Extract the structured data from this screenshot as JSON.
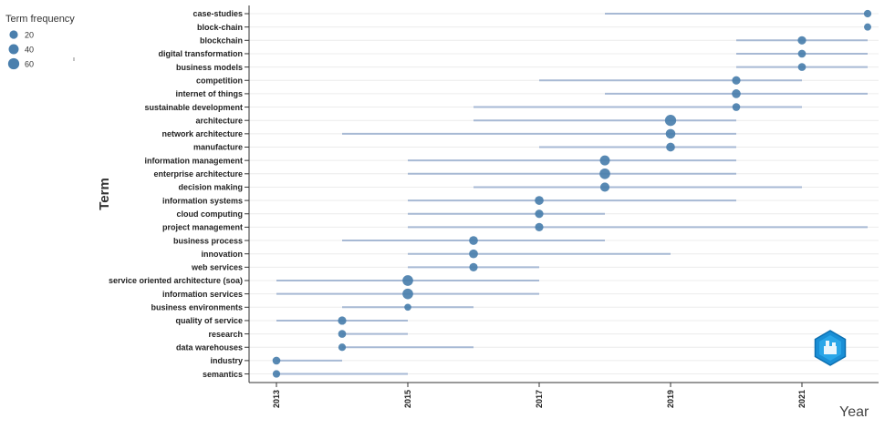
{
  "chart_data": {
    "type": "scatter",
    "xlabel": "Year",
    "ylabel": "Term",
    "xlim": [
      2012.6,
      2022.3
    ],
    "x_ticks": [
      "2013",
      "2015",
      "2017",
      "2019",
      "2021"
    ],
    "legend": {
      "title": "Term frequency",
      "items": [
        {
          "label": "20",
          "value": 20
        },
        {
          "label": "40",
          "value": 40
        },
        {
          "label": "60",
          "value": 60
        }
      ],
      "placement": "top-left"
    },
    "colors": {
      "point": "#4a7fad",
      "range": "#a7b9d4",
      "grid": "#ececec"
    },
    "terms": [
      {
        "term": "case-studies",
        "start": 2018,
        "end": 2022,
        "median": 2022,
        "freq": 12
      },
      {
        "term": "block-chain",
        "start": 2022,
        "end": 2022,
        "median": 2022,
        "freq": 10
      },
      {
        "term": "blockchain",
        "start": 2020,
        "end": 2022,
        "median": 2021,
        "freq": 20
      },
      {
        "term": "digital transformation",
        "start": 2020,
        "end": 2022,
        "median": 2021,
        "freq": 15
      },
      {
        "term": "business models",
        "start": 2020,
        "end": 2022,
        "median": 2021,
        "freq": 15
      },
      {
        "term": "competition",
        "start": 2017,
        "end": 2021,
        "median": 2020,
        "freq": 20
      },
      {
        "term": "internet of things",
        "start": 2018,
        "end": 2022,
        "median": 2020,
        "freq": 25
      },
      {
        "term": "sustainable development",
        "start": 2016,
        "end": 2021,
        "median": 2020,
        "freq": 15
      },
      {
        "term": "architecture",
        "start": 2016,
        "end": 2020,
        "median": 2019,
        "freq": 60
      },
      {
        "term": "network architecture",
        "start": 2014,
        "end": 2020,
        "median": 2019,
        "freq": 35
      },
      {
        "term": "manufacture",
        "start": 2017,
        "end": 2020,
        "median": 2019,
        "freq": 25
      },
      {
        "term": "information management",
        "start": 2015,
        "end": 2020,
        "median": 2018,
        "freq": 40
      },
      {
        "term": "enterprise architecture",
        "start": 2015,
        "end": 2020,
        "median": 2018,
        "freq": 50
      },
      {
        "term": "decision making",
        "start": 2016,
        "end": 2021,
        "median": 2018,
        "freq": 30
      },
      {
        "term": "information systems",
        "start": 2015,
        "end": 2020,
        "median": 2017,
        "freq": 25
      },
      {
        "term": "cloud computing",
        "start": 2015,
        "end": 2018,
        "median": 2017,
        "freq": 20
      },
      {
        "term": "project management",
        "start": 2015,
        "end": 2022,
        "median": 2017,
        "freq": 20
      },
      {
        "term": "business process",
        "start": 2014,
        "end": 2018,
        "median": 2016,
        "freq": 25
      },
      {
        "term": "innovation",
        "start": 2015,
        "end": 2019,
        "median": 2016,
        "freq": 25
      },
      {
        "term": "web services",
        "start": 2015,
        "end": 2017,
        "median": 2016,
        "freq": 20
      },
      {
        "term": "service oriented architecture (soa)",
        "start": 2013,
        "end": 2017,
        "median": 2015,
        "freq": 50
      },
      {
        "term": "information services",
        "start": 2013,
        "end": 2017,
        "median": 2015,
        "freq": 50
      },
      {
        "term": "business environments",
        "start": 2014,
        "end": 2016,
        "median": 2015,
        "freq": 8
      },
      {
        "term": "quality of service",
        "start": 2013,
        "end": 2015,
        "median": 2014,
        "freq": 20
      },
      {
        "term": "research",
        "start": 2014,
        "end": 2015,
        "median": 2014,
        "freq": 15
      },
      {
        "term": "data warehouses",
        "start": 2014,
        "end": 2016,
        "median": 2014,
        "freq": 12
      },
      {
        "term": "industry",
        "start": 2013,
        "end": 2014,
        "median": 2013,
        "freq": 15
      },
      {
        "term": "semantics",
        "start": 2013,
        "end": 2015,
        "median": 2013,
        "freq": 12
      }
    ]
  }
}
